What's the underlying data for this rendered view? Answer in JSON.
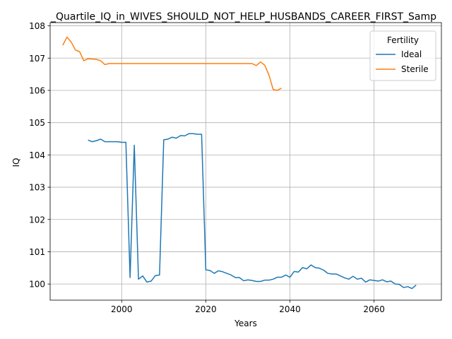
{
  "chart_data": {
    "type": "line",
    "title": "_Quartile_IQ_in_WIVES_SHOULD_NOT_HELP_HUSBANDS_CAREER_FIRST_Samp",
    "xlabel": "Years",
    "ylabel": "IQ",
    "xlim": [
      1983,
      2076
    ],
    "ylim": [
      99.5,
      108.1
    ],
    "x_ticks": [
      2000,
      2020,
      2040,
      2060
    ],
    "y_ticks": [
      100,
      101,
      102,
      103,
      104,
      105,
      106,
      107,
      108
    ],
    "grid": true,
    "legend": {
      "title": "Fertility",
      "placement": "top-right"
    },
    "series": [
      {
        "name": "Ideal",
        "color": "#1f77b4",
        "x": [
          1992,
          1993,
          1994,
          1995,
          1996,
          1997,
          1998,
          1999,
          2000,
          2001,
          2002,
          2003,
          2004,
          2005,
          2006,
          2007,
          2008,
          2009,
          2010,
          2011,
          2012,
          2013,
          2014,
          2015,
          2016,
          2017,
          2018,
          2019,
          2020,
          2021,
          2022,
          2023,
          2024,
          2025,
          2026,
          2027,
          2028,
          2029,
          2030,
          2031,
          2032,
          2033,
          2034,
          2035,
          2036,
          2037,
          2038,
          2039,
          2040,
          2041,
          2042,
          2043,
          2044,
          2045,
          2046,
          2047,
          2048,
          2049,
          2050,
          2051,
          2052,
          2053,
          2054,
          2055,
          2056,
          2057,
          2058,
          2059,
          2060,
          2061,
          2062,
          2063,
          2064,
          2065,
          2066,
          2067,
          2068,
          2069,
          2070
        ],
        "values": [
          104.46,
          104.41,
          104.44,
          104.49,
          104.41,
          104.41,
          104.41,
          104.41,
          104.39,
          104.39,
          100.2,
          104.3,
          100.15,
          100.25,
          100.06,
          100.09,
          100.26,
          100.28,
          104.47,
          104.49,
          104.55,
          104.52,
          104.6,
          104.59,
          104.66,
          104.66,
          104.64,
          104.64,
          100.44,
          100.42,
          100.33,
          100.41,
          100.38,
          100.33,
          100.28,
          100.2,
          100.2,
          100.1,
          100.13,
          100.11,
          100.08,
          100.08,
          100.12,
          100.12,
          100.15,
          100.21,
          100.21,
          100.28,
          100.21,
          100.39,
          100.37,
          100.51,
          100.47,
          100.59,
          100.51,
          100.49,
          100.43,
          100.33,
          100.31,
          100.31,
          100.25,
          100.19,
          100.15,
          100.24,
          100.15,
          100.18,
          100.06,
          100.13,
          100.11,
          100.09,
          100.13,
          100.07,
          100.09,
          100.0,
          99.99,
          99.89,
          99.92,
          99.86,
          99.97
        ]
      },
      {
        "name": "Sterile",
        "color": "#ff7f0e",
        "x": [
          1986,
          1987,
          1988,
          1989,
          1990,
          1991,
          1992,
          1993,
          1994,
          1995,
          1996,
          1997,
          1998,
          1999,
          2000,
          2001,
          2002,
          2003,
          2004,
          2005,
          2006,
          2007,
          2008,
          2009,
          2010,
          2011,
          2012,
          2013,
          2014,
          2015,
          2016,
          2017,
          2018,
          2019,
          2020,
          2021,
          2022,
          2023,
          2024,
          2025,
          2026,
          2027,
          2028,
          2029,
          2030,
          2031,
          2032,
          2033,
          2034,
          2035,
          2036,
          2037,
          2038
        ],
        "values": [
          107.4,
          107.65,
          107.5,
          107.25,
          107.2,
          106.92,
          106.98,
          106.97,
          106.96,
          106.92,
          106.8,
          106.83,
          106.83,
          106.83,
          106.83,
          106.83,
          106.83,
          106.83,
          106.83,
          106.83,
          106.83,
          106.83,
          106.83,
          106.83,
          106.83,
          106.83,
          106.83,
          106.83,
          106.83,
          106.83,
          106.83,
          106.83,
          106.83,
          106.83,
          106.83,
          106.83,
          106.83,
          106.83,
          106.83,
          106.83,
          106.83,
          106.83,
          106.83,
          106.83,
          106.83,
          106.83,
          106.77,
          106.88,
          106.78,
          106.48,
          106.03,
          106.0,
          106.07
        ]
      }
    ]
  }
}
